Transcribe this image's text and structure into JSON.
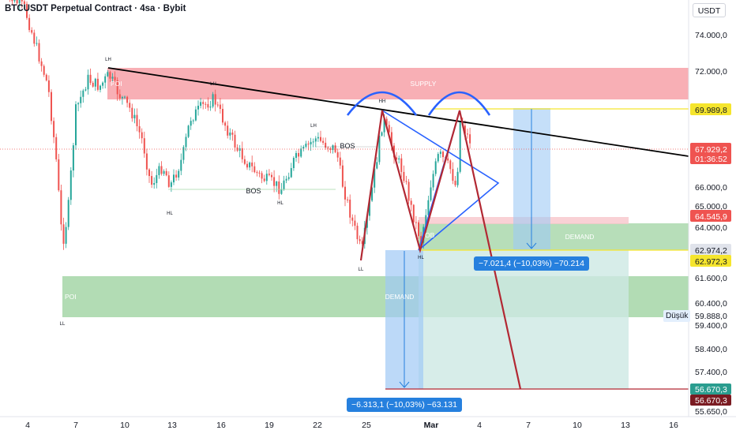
{
  "header": {
    "title": "BTCUSDT Perpetual Contract · 4sa · Bybit",
    "currency_button": "USDT"
  },
  "price_axis": {
    "ticks": [
      "74.000,0",
      "72.000,0",
      "66.000,0",
      "65.000,0",
      "64.000,0",
      "61.600,0",
      "60.400,0",
      "59.400,0",
      "58.400,0",
      "57.400,0",
      "55.650,0"
    ]
  },
  "price_tags": {
    "level_69989": "69.989,8",
    "current_price": "67.929,2",
    "countdown": "01:36:52",
    "level_64545": "64.545,9",
    "level_62974": "62.974,2",
    "level_62972": "62.972,3",
    "level_59888": "59.888,0",
    "level_56670a": "56.670,3",
    "level_56670b": "56.670,3",
    "low_label": "Düşük"
  },
  "time_axis": {
    "ticks": [
      "4",
      "7",
      "10",
      "13",
      "16",
      "19",
      "22",
      "25",
      "Mar",
      "4",
      "7",
      "10",
      "13",
      "16"
    ]
  },
  "zones": {
    "supply": "SUPPLY",
    "poi_top": "POI",
    "demand_right": "DEMAND",
    "poi_bottom": "POI",
    "demand_bottom": "DEMAND",
    "ob": "OB"
  },
  "annotations": {
    "lh_1": "LH",
    "lh_2": "LH",
    "lh_3": "LH",
    "hh": "HH",
    "hl_1": "HL",
    "hl_2": "HL",
    "hl_3": "HL",
    "ll_1": "LL",
    "ll_2": "LL",
    "bos_1": "BOS",
    "bos_2": "BOS"
  },
  "measures": {
    "upper": "−7.021,4 (−10,03%) −70.214",
    "lower": "−6.313,1 (−10,03%) −63.131"
  },
  "colors": {
    "supply": "#f7a1a8",
    "demand": "#a5d6a7",
    "measure_blue": "#2680de",
    "up_candle": "#26a69a",
    "down_candle": "#ef5350",
    "drawing_red": "#b22833",
    "pattern_blue": "#2962ff",
    "yellow_level": "#f5e52d"
  }
}
